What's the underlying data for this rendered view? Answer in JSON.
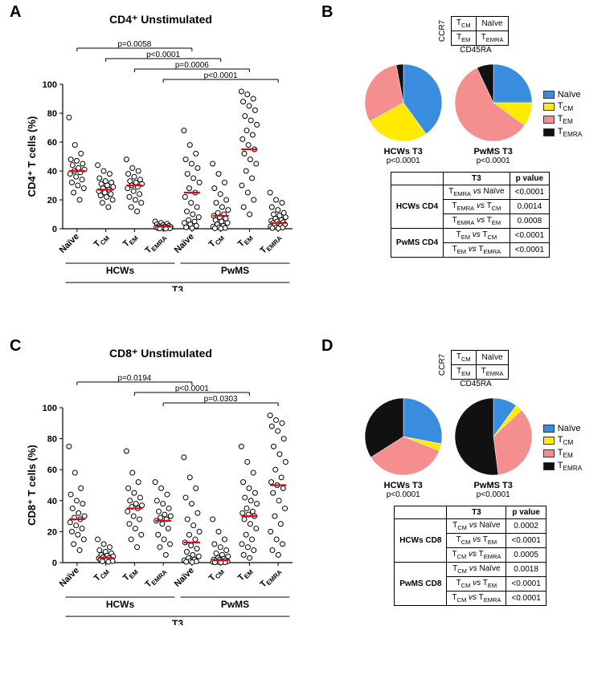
{
  "colors": {
    "naive": "#3a8dde",
    "tcm": "#ffea00",
    "tem": "#f58e8e",
    "temra": "#111111",
    "point_stroke": "#000000",
    "point_fill": "#ffffff",
    "median": "#e30613",
    "axis": "#000000",
    "bg": "#ffffff"
  },
  "panels": {
    "A": {
      "label": "A",
      "title": "CD4⁺ Unstimulated",
      "y_label": "CD4⁺ T cells (%)",
      "ylim": [
        0,
        100
      ],
      "ytick_step": 20,
      "groups": [
        "HCWs",
        "PwMS"
      ],
      "bottom_label": "T3",
      "categories": [
        "Naïve",
        "T_CM",
        "T_EM",
        "T_EMRA"
      ],
      "pvalues": [
        {
          "from": 0,
          "to": 4,
          "text": "p=0.0058"
        },
        {
          "from": 1,
          "to": 5,
          "text": "p<0.0001"
        },
        {
          "from": 2,
          "to": 6,
          "text": "p=0.0006"
        },
        {
          "from": 3,
          "to": 7,
          "text": "p<0.0001"
        }
      ],
      "series": [
        {
          "name": "HCWs Naïve",
          "median": 40,
          "points": [
            77,
            58,
            52,
            48,
            47,
            45,
            44,
            42,
            41,
            40,
            39,
            38,
            36,
            34,
            32,
            30,
            28,
            25,
            20
          ]
        },
        {
          "name": "HCWs TCM",
          "median": 27,
          "points": [
            44,
            40,
            38,
            35,
            33,
            32,
            31,
            30,
            29,
            28,
            27,
            26,
            25,
            24,
            23,
            22,
            20,
            18,
            15
          ]
        },
        {
          "name": "HCWs TEM",
          "median": 30,
          "points": [
            48,
            42,
            40,
            38,
            36,
            34,
            33,
            32,
            31,
            30,
            29,
            28,
            26,
            24,
            22,
            20,
            18,
            15,
            12
          ]
        },
        {
          "name": "HCWs TEMRA",
          "median": 1.5,
          "points": [
            5,
            4,
            3.5,
            3,
            2.5,
            2,
            1.8,
            1.5,
            1.3,
            1.2,
            1,
            1,
            0.8,
            0.6,
            0.5,
            0.4,
            0.3,
            0.2,
            0.1
          ]
        },
        {
          "name": "PwMS Naïve",
          "median": 25,
          "points": [
            68,
            58,
            52,
            48,
            45,
            42,
            38,
            35,
            32,
            28,
            25,
            22,
            18,
            15,
            12,
            10,
            8,
            6,
            5,
            4,
            3,
            2,
            1,
            0.5
          ]
        },
        {
          "name": "PwMS TCM",
          "median": 9,
          "points": [
            45,
            38,
            32,
            28,
            24,
            20,
            18,
            15,
            13,
            11,
            10,
            9,
            8,
            7,
            6,
            5,
            4,
            3,
            2,
            1.5,
            1,
            0.5,
            0.3,
            0.2
          ]
        },
        {
          "name": "PwMS TEM",
          "median": 55,
          "points": [
            95,
            93,
            90,
            88,
            85,
            82,
            78,
            75,
            72,
            68,
            65,
            62,
            58,
            55,
            52,
            48,
            45,
            40,
            35,
            30,
            25,
            20,
            15,
            10
          ]
        },
        {
          "name": "PwMS TEMRA",
          "median": 4,
          "points": [
            25,
            20,
            18,
            15,
            13,
            11,
            10,
            9,
            8,
            7,
            6,
            5.5,
            5,
            4.5,
            4,
            3.5,
            3,
            2.5,
            2,
            1.5,
            1,
            0.8,
            0.5,
            0.3
          ]
        }
      ]
    },
    "B": {
      "label": "B",
      "quad": {
        "tl": "T_CM",
        "tr": "Naïve",
        "bl": "T_EM",
        "br": "T_EMRA",
        "y": "CCR7",
        "x": "CD45RA"
      },
      "legend": [
        "Naïve",
        "T_CM",
        "T_EM",
        "T_EMRA"
      ],
      "pies": [
        {
          "name": "HCWs T3",
          "p": "p<0.0001",
          "slices": [
            {
              "k": "naive",
              "v": 40
            },
            {
              "k": "tcm",
              "v": 27
            },
            {
              "k": "tem",
              "v": 30
            },
            {
              "k": "temra",
              "v": 3
            }
          ]
        },
        {
          "name": "PwMS T3",
          "p": "p<0.0001",
          "slices": [
            {
              "k": "naive",
              "v": 25
            },
            {
              "k": "tcm",
              "v": 10
            },
            {
              "k": "tem",
              "v": 58
            },
            {
              "k": "temra",
              "v": 7
            }
          ]
        }
      ],
      "table": {
        "headers": [
          "",
          "T3",
          "p value"
        ],
        "rows": [
          {
            "group": "HCWs CD4",
            "rowspan": 3,
            "comp": "T_EMRA vs Naïve",
            "p": "<0.0001"
          },
          {
            "comp": "T_EMRA vs T_CM",
            "p": "0.0014"
          },
          {
            "comp": "T_EMRA vs T_EM",
            "p": "0.0008"
          },
          {
            "group": "PwMS CD4",
            "rowspan": 2,
            "comp": "T_EM vs T_CM",
            "p": "<0.0001"
          },
          {
            "comp": "T_EM vs T_EMRA",
            "p": "<0.0001"
          }
        ]
      }
    },
    "C": {
      "label": "C",
      "title": "CD8⁺ Unstimulated",
      "y_label": "CD8⁺ T cells (%)",
      "ylim": [
        0,
        100
      ],
      "ytick_step": 20,
      "groups": [
        "HCWs",
        "PwMS"
      ],
      "bottom_label": "T3",
      "categories": [
        "Naïve",
        "T_CM",
        "T_EM",
        "T_EMRA"
      ],
      "pvalues": [
        {
          "from": 0,
          "to": 4,
          "text": "p=0.0194"
        },
        {
          "from": 2,
          "to": 6,
          "text": "p<0.0001"
        },
        {
          "from": 3,
          "to": 7,
          "text": "p=0.0303"
        }
      ],
      "series": [
        {
          "name": "HCWs Naïve",
          "median": 28,
          "points": [
            75,
            58,
            48,
            44,
            40,
            38,
            35,
            32,
            30,
            29,
            28,
            26,
            24,
            22,
            20,
            18,
            15,
            12,
            8
          ]
        },
        {
          "name": "HCWs TCM",
          "median": 3,
          "points": [
            15,
            12,
            10,
            8,
            7,
            6,
            5,
            4.5,
            4,
            3.5,
            3,
            2.8,
            2.5,
            2,
            1.8,
            1.5,
            1,
            0.8,
            0.5
          ]
        },
        {
          "name": "HCWs TEM",
          "median": 35,
          "points": [
            72,
            58,
            52,
            48,
            45,
            42,
            40,
            38,
            37,
            36,
            35,
            33,
            30,
            28,
            25,
            22,
            18,
            15,
            10
          ]
        },
        {
          "name": "HCWs TEMRA",
          "median": 27,
          "points": [
            52,
            48,
            44,
            40,
            38,
            35,
            33,
            31,
            30,
            29,
            28,
            27,
            25,
            22,
            18,
            15,
            12,
            10,
            5
          ]
        },
        {
          "name": "PwMS Naïve",
          "median": 13,
          "points": [
            68,
            55,
            48,
            42,
            38,
            32,
            28,
            24,
            20,
            18,
            15,
            13,
            11,
            9,
            7,
            5,
            4,
            3,
            2,
            1.5,
            1,
            0.8,
            0.5,
            0.3
          ]
        },
        {
          "name": "PwMS TCM",
          "median": 1.5,
          "points": [
            28,
            20,
            15,
            12,
            10,
            8,
            6,
            5,
            4,
            3,
            2.5,
            2,
            1.8,
            1.5,
            1.2,
            1,
            0.8,
            0.6,
            0.5,
            0.4,
            0.3,
            0.2,
            0.15,
            0.1
          ]
        },
        {
          "name": "PwMS TEM",
          "median": 30,
          "points": [
            75,
            65,
            58,
            52,
            48,
            45,
            42,
            40,
            38,
            35,
            33,
            32,
            31,
            30,
            28,
            25,
            22,
            18,
            15,
            12,
            10,
            8,
            5,
            3
          ]
        },
        {
          "name": "PwMS TEMRA",
          "median": 50,
          "points": [
            95,
            92,
            90,
            88,
            85,
            80,
            75,
            70,
            65,
            60,
            55,
            52,
            50,
            48,
            45,
            40,
            35,
            30,
            25,
            20,
            15,
            12,
            8,
            5
          ]
        }
      ]
    },
    "D": {
      "label": "D",
      "quad": {
        "tl": "T_CM",
        "tr": "Naïve",
        "bl": "T_EM",
        "br": "T_EMRA",
        "y": "CCR7",
        "x": "CD45RA"
      },
      "legend": [
        "Naïve",
        "T_CM",
        "T_EM",
        "T_EMRA"
      ],
      "pies": [
        {
          "name": "HCWs T3",
          "p": "p<0.0001",
          "slices": [
            {
              "k": "naive",
              "v": 28
            },
            {
              "k": "tcm",
              "v": 3
            },
            {
              "k": "tem",
              "v": 35
            },
            {
              "k": "temra",
              "v": 34
            }
          ]
        },
        {
          "name": "PwMS T3",
          "p": "p<0.0001",
          "slices": [
            {
              "k": "naive",
              "v": 10
            },
            {
              "k": "tcm",
              "v": 3
            },
            {
              "k": "tem",
              "v": 35
            },
            {
              "k": "temra",
              "v": 52
            }
          ]
        }
      ],
      "table": {
        "headers": [
          "",
          "T3",
          "p value"
        ],
        "rows": [
          {
            "group": "HCWs CD8",
            "rowspan": 3,
            "comp": "T_CM vs Naïve",
            "p": "0.0002"
          },
          {
            "comp": "T_CM vs T_EM",
            "p": "<0.0001"
          },
          {
            "comp": "T_CM vs T_EMRA",
            "p": "0.0005"
          },
          {
            "group": "PwMS CD8",
            "rowspan": 3,
            "comp": "T_CM vs Naïve",
            "p": "0.0018"
          },
          {
            "comp": "T_CM vs T_EM",
            "p": "<0.0001"
          },
          {
            "comp": "T_CM vs T_EMRA",
            "p": "<0.0001"
          }
        ]
      }
    }
  }
}
